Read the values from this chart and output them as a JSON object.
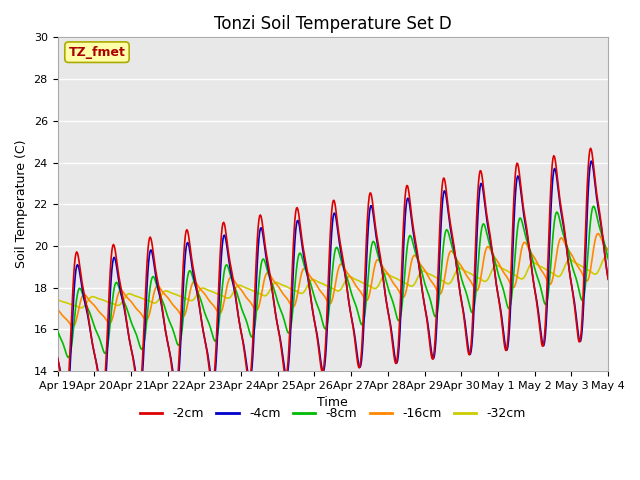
{
  "title": "Tonzi Soil Temperature Set D",
  "xlabel": "Time",
  "ylabel": "Soil Temperature (C)",
  "ylim": [
    14,
    30
  ],
  "n_days": 15,
  "x_tick_labels": [
    "Apr 19",
    "Apr 20",
    "Apr 21",
    "Apr 22",
    "Apr 23",
    "Apr 24",
    "Apr 25",
    "Apr 26",
    "Apr 27",
    "Apr 28",
    "Apr 29",
    "Apr 30",
    "May 1",
    "May 2",
    "May 3",
    "May 4"
  ],
  "legend_labels": [
    "-2cm",
    "-4cm",
    "-8cm",
    "-16cm",
    "-32cm"
  ],
  "legend_colors": [
    "#dd0000",
    "#0000cc",
    "#00bb00",
    "#ff8800",
    "#cccc00"
  ],
  "annotation_text": "TZ_fmet",
  "annotation_color": "#aa0000",
  "annotation_bg": "#ffffaa",
  "annotation_border": "#aaaa00",
  "bg_color": "#e8e8e8",
  "grid_color": "#ffffff",
  "title_fontsize": 12,
  "axis_fontsize": 9,
  "tick_fontsize": 8,
  "lw": 1.2
}
